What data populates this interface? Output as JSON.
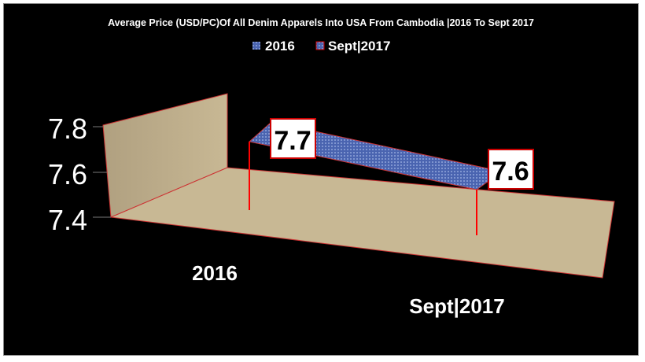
{
  "chart_data": {
    "type": "bar",
    "style": "3d-area",
    "title": "Average Price (USD/PC)Of All Denim Apparels  Into USA From Cambodia |2016 To Sept 2017",
    "categories": [
      "2016",
      "Sept|2017"
    ],
    "series": [
      {
        "name": "2016",
        "values": [
          7.7,
          7.6
        ]
      }
    ],
    "legend": [
      "2016",
      "Sept|2017"
    ],
    "legend_position": "top",
    "data_labels": [
      "7.7",
      "7.6"
    ],
    "yticks": [
      "7.8",
      "7.6",
      "7.4"
    ],
    "ylim": [
      7.4,
      7.8
    ],
    "grid": false,
    "colors": {
      "background": "#000000",
      "series": "#4a64b0",
      "floor": "#c8b894",
      "wall": "#b8a888",
      "drop_line": "#ff0000",
      "text": "#ffffff"
    }
  }
}
